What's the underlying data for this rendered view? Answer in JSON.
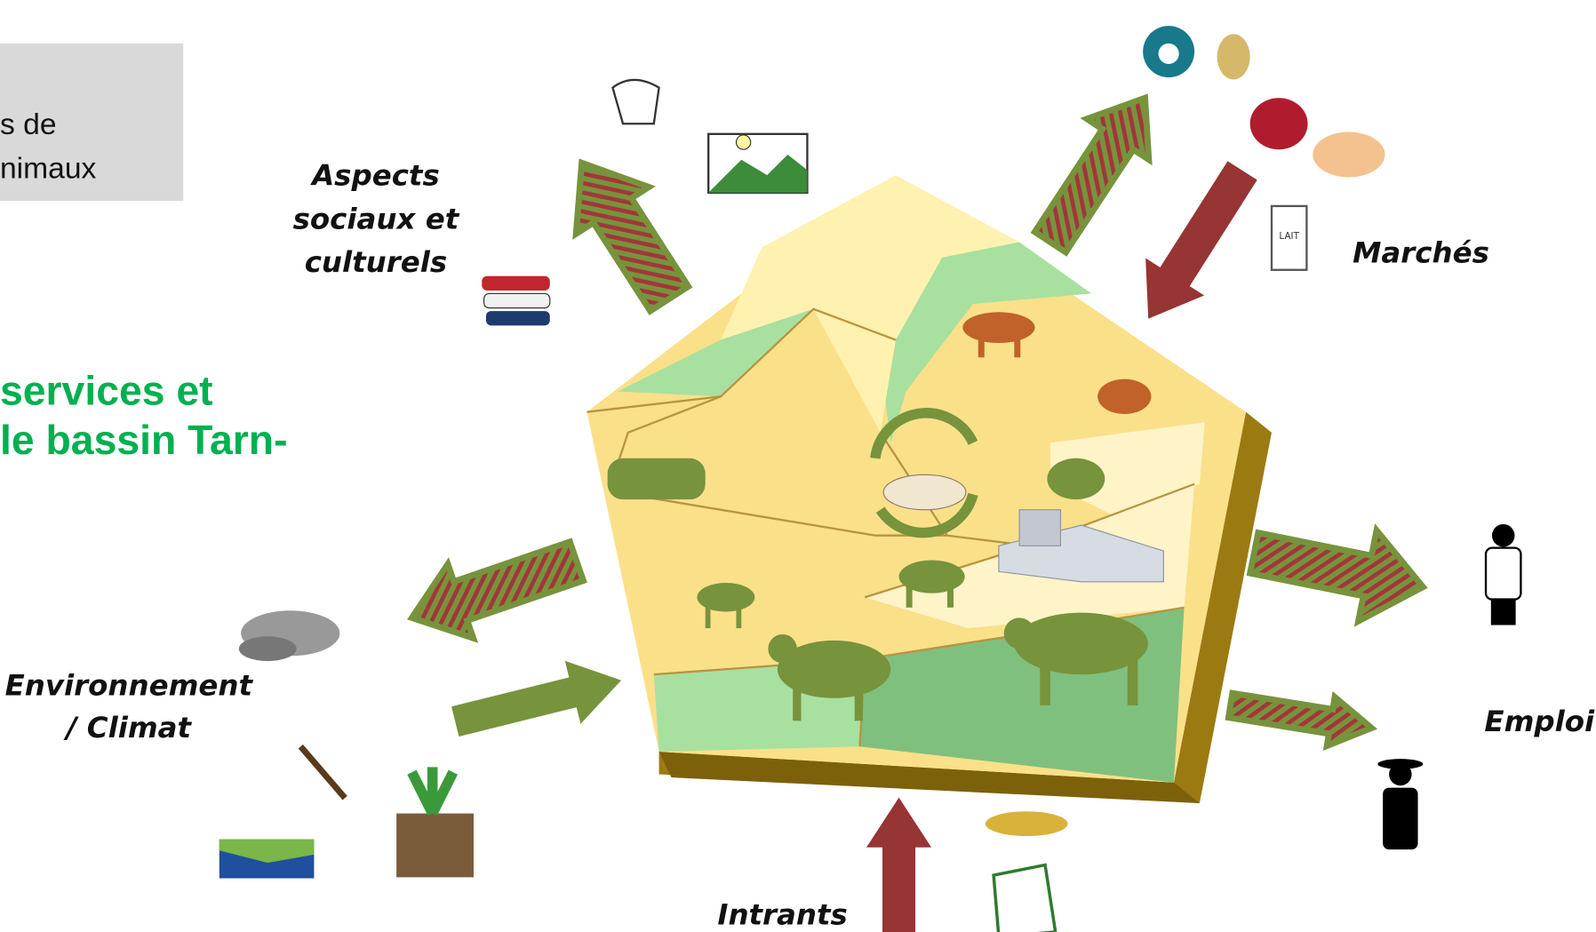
{
  "box_text": [
    "s de",
    "nimaux"
  ],
  "title": [
    "services et",
    "le bassin Tarn-"
  ],
  "labels": {
    "social": [
      "Aspects",
      "sociaux  et",
      "culturels"
    ],
    "markets": "Marchés",
    "environment": [
      "Environnement",
      "/ Climat"
    ],
    "jobs": "Emploi",
    "inputs": "Intrants"
  },
  "icons": {
    "milk": "LAIT"
  }
}
